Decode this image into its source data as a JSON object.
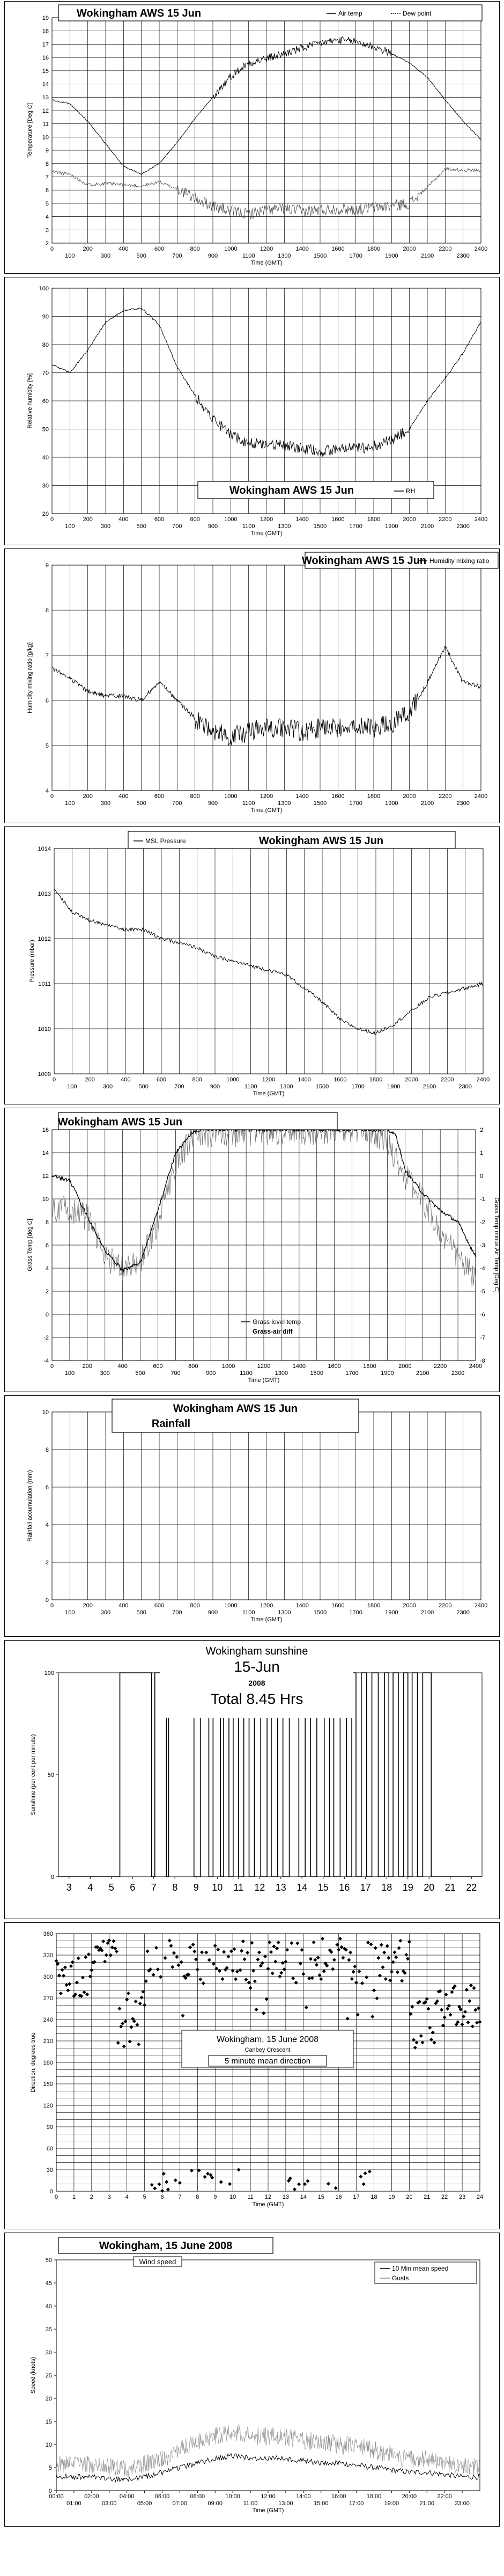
{
  "panels": [
    {
      "id": "temp",
      "title": "Wokingham AWS 15 Jun",
      "legend": [
        "Air temp",
        "Dew point"
      ],
      "ylabel": "Temperature [Deg C]",
      "xlabel": "Time (GMT)"
    },
    {
      "id": "rh",
      "title": "Wokingham AWS 15 Jun",
      "legend": [
        "RH"
      ],
      "ylabel": "Relative humidity [%]",
      "xlabel": "Time (GMT)"
    },
    {
      "id": "hmr",
      "title": "Wokingham AWS 15 Jun",
      "legend": [
        "Humidity mixing ratio"
      ],
      "ylabel": "Humidity mixing ratio [g/kg]",
      "xlabel": "Time (GMT)"
    },
    {
      "id": "mslp",
      "title": "Wokingham AWS 15 Jun",
      "legend": [
        "MSL Pressure"
      ],
      "ylabel": "Pressure (mbar)",
      "xlabel": "Time (GMT)"
    },
    {
      "id": "grass",
      "title": "Wokingham AWS 15 Jun",
      "legend": [
        "Grass level temp",
        "Grass-air diff"
      ],
      "ylabel": "Grass Temp [deg C]",
      "ylabel2": "Grass Temp minus Air Temp [Deg C]",
      "xlabel": "Time (GMT)"
    },
    {
      "id": "rain",
      "title": "Wokingham AWS 15 Jun",
      "subtitle": "Rainfall",
      "ylabel": "Rainfall accumulation (mm)",
      "xlabel": "Time (GMT)"
    },
    {
      "id": "sun",
      "title": "Wokingham sunshine",
      "subtitle": "15-Jun",
      "year": "2008",
      "total": "Total 8.45 Hrs",
      "ylabel": "Sunshine (per cent per minute)"
    },
    {
      "id": "wdir",
      "title": "Wokingham,  15 June 2008",
      "subtitle": "Canbey Crescent",
      "note": "5 minute mean direction",
      "ylabel": "Direction, degrees true",
      "xlabel": "Time (GMT)"
    },
    {
      "id": "wspd",
      "title": "Wokingham,  15 June 2008",
      "note": "Wind speed",
      "legend": [
        "10 Min mean speed",
        "Gusts"
      ],
      "ylabel": "Speed (knots)",
      "xlabel": "Time (GMT)"
    }
  ],
  "chart_data": [
    {
      "type": "line",
      "title": "Wokingham AWS 15 Jun",
      "xlabel": "Time (GMT)",
      "ylabel": "Temperature [Deg C]",
      "ylim": [
        2,
        19
      ],
      "xticks_top": [
        "0",
        "200",
        "400",
        "600",
        "800",
        "1000",
        "1200",
        "1400",
        "1600",
        "1800",
        "2000",
        "2200",
        "2400"
      ],
      "xticks_bottom": [
        "100",
        "300",
        "500",
        "700",
        "900",
        "1100",
        "1300",
        "1500",
        "1700",
        "1900",
        "2100",
        "2300"
      ],
      "yticks": [
        "2",
        "3",
        "4",
        "5",
        "6",
        "7",
        "8",
        "9",
        "10",
        "11",
        "12",
        "13",
        "14",
        "15",
        "16",
        "17",
        "18",
        "19"
      ],
      "grid": true,
      "legend_position": "top-right",
      "series": [
        {
          "name": "Air temp",
          "x": [
            0,
            100,
            200,
            300,
            400,
            500,
            600,
            700,
            800,
            900,
            1000,
            1100,
            1200,
            1300,
            1400,
            1500,
            1600,
            1700,
            1800,
            1900,
            2000,
            2100,
            2200,
            2300,
            2400
          ],
          "values": [
            12.8,
            12.5,
            11.2,
            9.5,
            7.8,
            7.2,
            8.0,
            9.6,
            11.4,
            13.0,
            14.6,
            15.6,
            15.9,
            16.3,
            16.7,
            17.1,
            17.3,
            17.2,
            16.8,
            16.3,
            15.6,
            14.5,
            12.8,
            11.2,
            9.8
          ]
        },
        {
          "name": "Dew point",
          "x": [
            0,
            100,
            200,
            300,
            400,
            500,
            600,
            700,
            800,
            900,
            1000,
            1100,
            1200,
            1300,
            1400,
            1500,
            1600,
            1700,
            1800,
            1900,
            2000,
            2100,
            2200,
            2300,
            2400
          ],
          "values": [
            7.4,
            7.2,
            6.4,
            6.5,
            6.4,
            6.3,
            6.6,
            6.1,
            5.4,
            4.8,
            4.4,
            4.2,
            4.5,
            4.6,
            4.4,
            4.5,
            4.6,
            4.5,
            4.7,
            4.8,
            5.0,
            6.2,
            7.6,
            7.5,
            7.5
          ]
        }
      ]
    },
    {
      "type": "line",
      "title": "Wokingham AWS 15 Jun",
      "xlabel": "Time (GMT)",
      "ylabel": "Relative humidity [%]",
      "ylim": [
        20,
        100
      ],
      "xticks_top": [
        "0",
        "200",
        "400",
        "600",
        "800",
        "1000",
        "1200",
        "1400",
        "1600",
        "1800",
        "2000",
        "2200",
        "2400"
      ],
      "xticks_bottom": [
        "100",
        "300",
        "500",
        "700",
        "900",
        "1100",
        "1300",
        "1500",
        "1700",
        "1900",
        "2100",
        "2300"
      ],
      "yticks": [
        "20",
        "30",
        "40",
        "50",
        "60",
        "70",
        "80",
        "90",
        "100"
      ],
      "grid": true,
      "legend_position": "bottom-right",
      "series": [
        {
          "name": "RH",
          "x": [
            0,
            100,
            200,
            300,
            400,
            500,
            600,
            700,
            800,
            900,
            1000,
            1100,
            1200,
            1300,
            1400,
            1500,
            1600,
            1700,
            1800,
            1900,
            2000,
            2100,
            2200,
            2300,
            2400
          ],
          "values": [
            73,
            70,
            78,
            88,
            92,
            93,
            87,
            72,
            62,
            54,
            48,
            45,
            45,
            44,
            43,
            42,
            43,
            43,
            44,
            46,
            50,
            60,
            68,
            77,
            88
          ]
        }
      ]
    },
    {
      "type": "line",
      "title": "Wokingham AWS 15 Jun",
      "xlabel": "Time (GMT)",
      "ylabel": "Humidity mixing ratio [g/kg]",
      "ylim": [
        4,
        9
      ],
      "xticks_top": [
        "0",
        "200",
        "400",
        "600",
        "800",
        "1000",
        "1200",
        "1400",
        "1600",
        "1800",
        "2000",
        "2200",
        "2400"
      ],
      "xticks_bottom": [
        "100",
        "300",
        "500",
        "700",
        "900",
        "1100",
        "1300",
        "1500",
        "1700",
        "1900",
        "2100",
        "2300"
      ],
      "yticks": [
        "4",
        "5",
        "6",
        "7",
        "8",
        "9"
      ],
      "grid": true,
      "legend_position": "top-right",
      "series": [
        {
          "name": "Humidity mixing ratio",
          "x": [
            0,
            100,
            200,
            300,
            400,
            500,
            600,
            700,
            800,
            900,
            1000,
            1100,
            1200,
            1300,
            1400,
            1500,
            1600,
            1700,
            1800,
            1900,
            2000,
            2100,
            2200,
            2300,
            2400
          ],
          "values": [
            6.7,
            6.5,
            6.2,
            6.1,
            6.1,
            6.0,
            6.4,
            6.0,
            5.6,
            5.3,
            5.2,
            5.3,
            5.4,
            5.4,
            5.3,
            5.4,
            5.4,
            5.4,
            5.4,
            5.5,
            5.7,
            6.4,
            7.2,
            6.4,
            6.3
          ]
        }
      ]
    },
    {
      "type": "line",
      "title": "Wokingham AWS 15 Jun",
      "xlabel": "Time (GMT)",
      "ylabel": "Pressure (mbar)",
      "ylim": [
        1009,
        1014
      ],
      "xticks_top": [
        "0",
        "200",
        "400",
        "600",
        "800",
        "1000",
        "1200",
        "1400",
        "1600",
        "1800",
        "2000",
        "2200",
        "2400"
      ],
      "xticks_bottom": [
        "100",
        "300",
        "500",
        "700",
        "900",
        "1100",
        "1300",
        "1500",
        "1700",
        "1900",
        "2100",
        "2300"
      ],
      "yticks": [
        "1009",
        "1010",
        "1011",
        "1012",
        "1013",
        "1014"
      ],
      "grid": true,
      "legend_position": "top-left",
      "series": [
        {
          "name": "MSL Pressure",
          "x": [
            0,
            100,
            200,
            300,
            400,
            500,
            600,
            700,
            800,
            900,
            1000,
            1100,
            1200,
            1300,
            1400,
            1500,
            1600,
            1700,
            1800,
            1900,
            2000,
            2100,
            2200,
            2300,
            2400
          ],
          "values": [
            1013.1,
            1012.6,
            1012.4,
            1012.3,
            1012.2,
            1012.2,
            1012.0,
            1011.9,
            1011.8,
            1011.6,
            1011.5,
            1011.4,
            1011.3,
            1011.2,
            1010.9,
            1010.6,
            1010.2,
            1010.0,
            1009.9,
            1010.1,
            1010.4,
            1010.7,
            1010.8,
            1010.9,
            1011.0
          ]
        }
      ]
    },
    {
      "type": "line",
      "title": "Wokingham AWS 15 Jun",
      "xlabel": "Time (GMT)",
      "ylabel": "Grass Temp [deg C]",
      "ylabel2": "Grass Temp minus Air Temp [Deg C]",
      "ylim": [
        -4,
        16
      ],
      "ylim2": [
        -8,
        2
      ],
      "xticks_top": [
        "0",
        "200",
        "400",
        "600",
        "800",
        "1000",
        "1200",
        "1400",
        "1600",
        "1800",
        "2000",
        "2200",
        "2400"
      ],
      "xticks_bottom": [
        "100",
        "300",
        "500",
        "700",
        "900",
        "1100",
        "1300",
        "1500",
        "1700",
        "1900",
        "2100",
        "2300"
      ],
      "yticks": [
        "-4",
        "-2",
        "0",
        "2",
        "4",
        "6",
        "8",
        "10",
        "12",
        "14",
        "16"
      ],
      "yticks2": [
        "-8",
        "-7",
        "-6",
        "-5",
        "-4",
        "-3",
        "-2",
        "-1",
        "0",
        "1",
        "2"
      ],
      "grid": true,
      "legend_position": "bottom-center",
      "series": [
        {
          "name": "Grass level temp",
          "x": [
            0,
            100,
            200,
            300,
            400,
            500,
            600,
            700,
            800,
            850,
            1900,
            1950,
            2000,
            2100,
            2200,
            2300,
            2400
          ],
          "values": [
            12.0,
            11.6,
            8.5,
            5.5,
            3.8,
            4.5,
            9.0,
            14.0,
            15.8,
            16.0,
            16.0,
            15.5,
            12.5,
            10.5,
            9.0,
            8.0,
            5.0
          ]
        },
        {
          "name": "Grass-air diff",
          "x": [
            0,
            100,
            200,
            300,
            400,
            500,
            600,
            700,
            800,
            1800,
            1900,
            2000,
            2100,
            2200,
            2300,
            2400
          ],
          "values": [
            -1.5,
            -1.4,
            -1.8,
            -3.5,
            -4.0,
            -3.8,
            -2.0,
            0.5,
            1.8,
            2.0,
            1.5,
            0.0,
            -1.0,
            -2.5,
            -3.5,
            -4.5
          ]
        }
      ]
    },
    {
      "type": "line",
      "title": "Wokingham AWS 15 Jun",
      "subtitle": "Rainfall",
      "xlabel": "Time (GMT)",
      "ylabel": "Rainfall accumulation (mm)",
      "ylim": [
        0,
        10
      ],
      "xticks_top": [
        "0",
        "200",
        "400",
        "600",
        "800",
        "1000",
        "1200",
        "1400",
        "1600",
        "1800",
        "2000",
        "2200",
        "2400"
      ],
      "xticks_bottom": [
        "100",
        "300",
        "500",
        "700",
        "900",
        "1100",
        "1300",
        "1500",
        "1700",
        "1900",
        "2100",
        "2300"
      ],
      "yticks": [
        "0",
        "2",
        "4",
        "6",
        "8",
        "10"
      ],
      "grid": true,
      "series": []
    },
    {
      "type": "area",
      "title": "Wokingham sunshine",
      "subtitle": "15-Jun",
      "ylabel": "Sunshine (per cent per minute)",
      "ylim": [
        0,
        100
      ],
      "xticks": [
        "3",
        "4",
        "5",
        "6",
        "7",
        "8",
        "9",
        "10",
        "11",
        "12",
        "13",
        "14",
        "15",
        "16",
        "17",
        "18",
        "19",
        "20",
        "21",
        "22"
      ],
      "yticks": [
        "0",
        "50",
        "100"
      ],
      "grid": false,
      "sun_intervals": [
        [
          5.4,
          6.9
        ],
        [
          7.05,
          7.6
        ],
        [
          7.7,
          8.9
        ],
        [
          9.2,
          9.6
        ],
        [
          9.8,
          10.15
        ],
        [
          10.3,
          10.55
        ],
        [
          10.75,
          11.0
        ],
        [
          11.25,
          11.5
        ],
        [
          11.75,
          12.05
        ],
        [
          12.35,
          12.55
        ],
        [
          12.85,
          13.1
        ],
        [
          13.4,
          13.85
        ],
        [
          14.15,
          14.4
        ],
        [
          14.7,
          15.05
        ],
        [
          15.3,
          15.5
        ],
        [
          15.8,
          16.1
        ],
        [
          16.35,
          16.55
        ],
        [
          16.8,
          17.05
        ],
        [
          17.3,
          17.6
        ],
        [
          17.9,
          18.1
        ],
        [
          18.3,
          18.55
        ],
        [
          18.8,
          19.0
        ],
        [
          19.2,
          19.45
        ],
        [
          19.7,
          20.1
        ]
      ]
    },
    {
      "type": "scatter",
      "title": "Wokingham,  15 June 2008",
      "xlabel": "Time (GMT)",
      "ylabel": "Direction, degrees true",
      "ylim": [
        0,
        360
      ],
      "xticks": [
        "0",
        "1",
        "2",
        "3",
        "4",
        "5",
        "6",
        "7",
        "8",
        "9",
        "10",
        "11",
        "12",
        "13",
        "14",
        "15",
        "16",
        "17",
        "18",
        "19",
        "20",
        "21",
        "22",
        "23",
        "24"
      ],
      "yticks": [
        "0",
        "30",
        "60",
        "90",
        "120",
        "150",
        "180",
        "210",
        "240",
        "270",
        "300",
        "330",
        "360"
      ],
      "grid": true
    },
    {
      "type": "line",
      "title": "Wokingham,  15 June 2008",
      "xlabel": "Time (GMT)",
      "ylabel": "Speed (knots)",
      "ylim": [
        0,
        50
      ],
      "xticks_top": [
        "00:00",
        "02:00",
        "04:00",
        "06:00",
        "08:00",
        "10:00",
        "12:00",
        "14:00",
        "16:00",
        "18:00",
        "20:00",
        "22:00"
      ],
      "xticks_bottom": [
        "01:00",
        "03:00",
        "05:00",
        "07:00",
        "09:00",
        "11:00",
        "13:00",
        "15:00",
        "17:00",
        "19:00",
        "21:00",
        "23:00"
      ],
      "yticks": [
        "0",
        "5",
        "10",
        "15",
        "20",
        "25",
        "30",
        "35",
        "40",
        "45",
        "50"
      ],
      "grid": false,
      "legend_position": "top-right",
      "series": [
        {
          "name": "10 Min mean speed",
          "x": [
            0,
            1,
            2,
            3,
            4,
            5,
            6,
            7,
            8,
            9,
            10,
            11,
            12,
            13,
            14,
            15,
            16,
            17,
            18,
            19,
            20,
            21,
            22,
            23,
            24
          ],
          "values": [
            3,
            3,
            3,
            2.5,
            2.5,
            3,
            4,
            5,
            6,
            7,
            7.5,
            7,
            7,
            7,
            6.5,
            6,
            6,
            5.5,
            5,
            4.5,
            4,
            4,
            3.5,
            3,
            3
          ]
        },
        {
          "name": "Gusts",
          "x": [
            0,
            1,
            2,
            3,
            4,
            5,
            6,
            7,
            8,
            9,
            10,
            11,
            12,
            13,
            14,
            15,
            16,
            17,
            18,
            19,
            20,
            21,
            22,
            23,
            24
          ],
          "values": [
            5,
            5,
            5,
            4.5,
            4,
            5,
            6,
            8,
            10,
            11,
            12,
            11,
            11,
            11,
            10,
            10,
            9,
            9,
            8,
            7,
            6,
            6,
            5,
            5,
            4
          ]
        }
      ]
    }
  ]
}
